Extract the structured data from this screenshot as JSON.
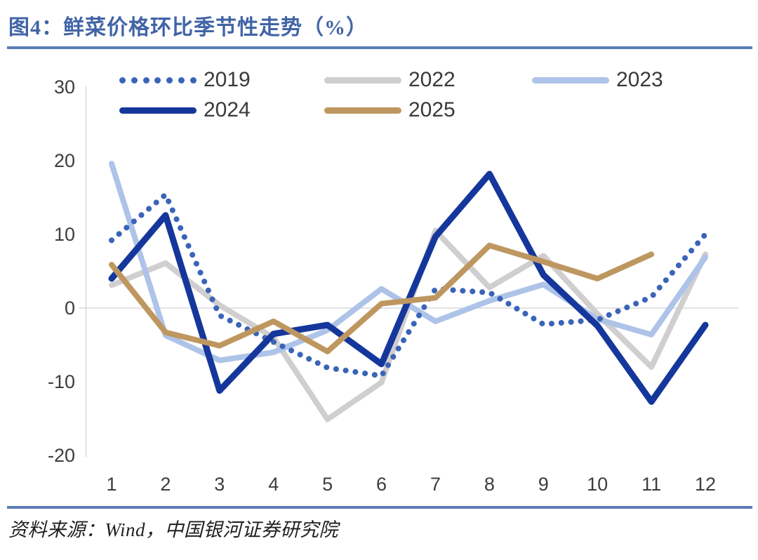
{
  "figure": {
    "title": "图4：鲜菜价格环比季节性走势（%）",
    "source": "资料来源：Wind，中国银河证券研究院",
    "accent_rule_color": "#5C7CB6",
    "title_color": "#4164A6",
    "axis_text_color": "#3d3d3d",
    "grid_color": "#DADADA"
  },
  "chart_data": {
    "type": "line",
    "x": [
      1,
      2,
      3,
      4,
      5,
      6,
      7,
      8,
      9,
      10,
      11,
      12
    ],
    "x_tick_labels": [
      "1",
      "2",
      "3",
      "4",
      "5",
      "6",
      "7",
      "8",
      "9",
      "10",
      "11",
      "12"
    ],
    "yticks": [
      30,
      20,
      10,
      0,
      -10,
      -20
    ],
    "ylim": [
      -20,
      30
    ],
    "xlabel": "",
    "ylabel": "",
    "grid": "zero-line-only",
    "legend_position": "top",
    "legend_rows": [
      [
        "2019",
        "2022",
        "2023"
      ],
      [
        "2024",
        "2025"
      ]
    ],
    "series": [
      {
        "name": "2019",
        "style": "dotted",
        "color": "#3A64B8",
        "values": [
          9.2,
          15.4,
          -1.0,
          -4.6,
          -8.1,
          -9.2,
          2.6,
          2.1,
          -2.2,
          -1.6,
          1.5,
          10.0
        ]
      },
      {
        "name": "2022",
        "style": "solid",
        "color": "#D0CECE",
        "values": [
          3.1,
          6.1,
          0.4,
          -4.0,
          -15.1,
          -10.1,
          10.5,
          2.8,
          7.1,
          -0.8,
          -8.0,
          7.3
        ]
      },
      {
        "name": "2023",
        "style": "solid",
        "color": "#AEC3E8",
        "values": [
          19.6,
          -3.7,
          -7.1,
          -6.0,
          -3.0,
          2.6,
          -1.8,
          1.0,
          3.2,
          -1.5,
          -3.6,
          6.9
        ]
      },
      {
        "name": "2024",
        "style": "solid",
        "color": "#15379C",
        "values": [
          4.0,
          12.6,
          -11.2,
          -3.5,
          -2.3,
          -7.6,
          9.7,
          18.2,
          4.5,
          -2.4,
          -12.7,
          -2.3
        ]
      },
      {
        "name": "2025",
        "style": "solid",
        "color": "#BE9760",
        "values": [
          5.9,
          -3.3,
          -5.1,
          -1.8,
          -5.9,
          0.6,
          1.4,
          8.5,
          6.3,
          4.0,
          7.3,
          null
        ]
      }
    ]
  }
}
